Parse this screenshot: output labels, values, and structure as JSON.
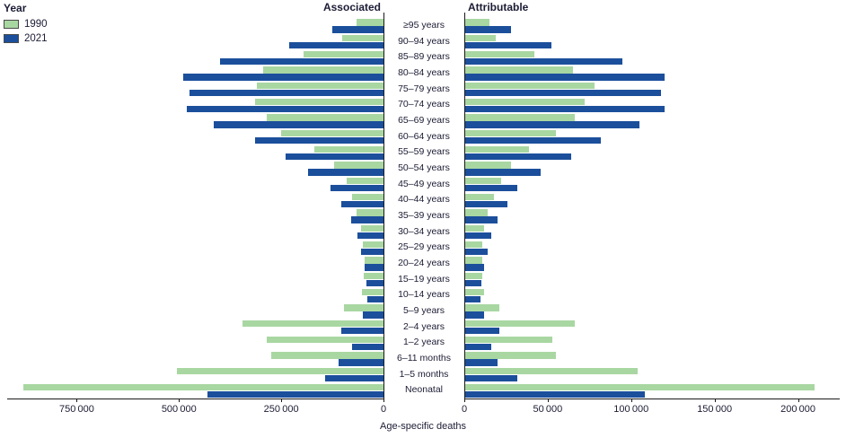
{
  "legend": {
    "title": "Year",
    "items": [
      {
        "label": "1990",
        "color": "#a9d7a2"
      },
      {
        "label": "2021",
        "color": "#1b4f9c"
      }
    ]
  },
  "chart_data": {
    "type": "bar",
    "orientation": "diverging-horizontal",
    "xlabel": "Age-specific deaths",
    "categories": [
      "≥95 years",
      "90–94 years",
      "85–89 years",
      "80–84 years",
      "75–79 years",
      "70–74 years",
      "65–69 years",
      "60–64 years",
      "55–59 years",
      "50–54 years",
      "45–49 years",
      "40–44 years",
      "35–39 years",
      "30–34 years",
      "25–29 years",
      "20–24 years",
      "15–19 years",
      "10–14 years",
      "5–9 years",
      "2–4 years",
      "1–2 years",
      "6–11 months",
      "1–5 months",
      "Neonatal"
    ],
    "series_names": [
      "1990",
      "2021"
    ],
    "colors": {
      "1990": "#a9d7a2",
      "2021": "#1b4f9c"
    },
    "left": {
      "title": "Associated",
      "axis_max": 920000,
      "ticks": [
        {
          "value": 750000,
          "label": "750 000"
        },
        {
          "value": 500000,
          "label": "500 000"
        },
        {
          "value": 250000,
          "label": "250 000"
        },
        {
          "value": 0,
          "label": "0"
        }
      ],
      "series": [
        {
          "name": "1990",
          "values": [
            65000,
            100000,
            195000,
            295000,
            310000,
            315000,
            285000,
            250000,
            170000,
            120000,
            90000,
            77000,
            65000,
            55000,
            50000,
            46000,
            48000,
            52000,
            96000,
            345000,
            285000,
            275000,
            505000,
            880000
          ]
        },
        {
          "name": "2021",
          "values": [
            125000,
            230000,
            400000,
            490000,
            475000,
            480000,
            415000,
            315000,
            240000,
            185000,
            130000,
            103000,
            80000,
            64000,
            55000,
            46000,
            42000,
            39000,
            50000,
            103000,
            77000,
            110000,
            143000,
            430000
          ]
        }
      ]
    },
    "right": {
      "title": "Attributable",
      "axis_max": 225000,
      "ticks": [
        {
          "value": 0,
          "label": "0"
        },
        {
          "value": 50000,
          "label": "50 000"
        },
        {
          "value": 100000,
          "label": "100 000"
        },
        {
          "value": 150000,
          "label": "150 000"
        },
        {
          "value": 200000,
          "label": "200 000"
        }
      ],
      "series": [
        {
          "name": "1990",
          "values": [
            15000,
            19000,
            42000,
            65000,
            78000,
            72000,
            66000,
            55000,
            39000,
            28000,
            22000,
            18000,
            14000,
            12000,
            11000,
            11000,
            11000,
            12000,
            21000,
            66000,
            53000,
            55000,
            104000,
            210000
          ]
        },
        {
          "name": "2021",
          "values": [
            28000,
            52000,
            95000,
            120000,
            118000,
            120000,
            105000,
            82000,
            64000,
            46000,
            32000,
            26000,
            20000,
            16000,
            14000,
            12000,
            10000,
            9500,
            12000,
            21000,
            16000,
            20000,
            32000,
            108000
          ]
        }
      ]
    }
  }
}
